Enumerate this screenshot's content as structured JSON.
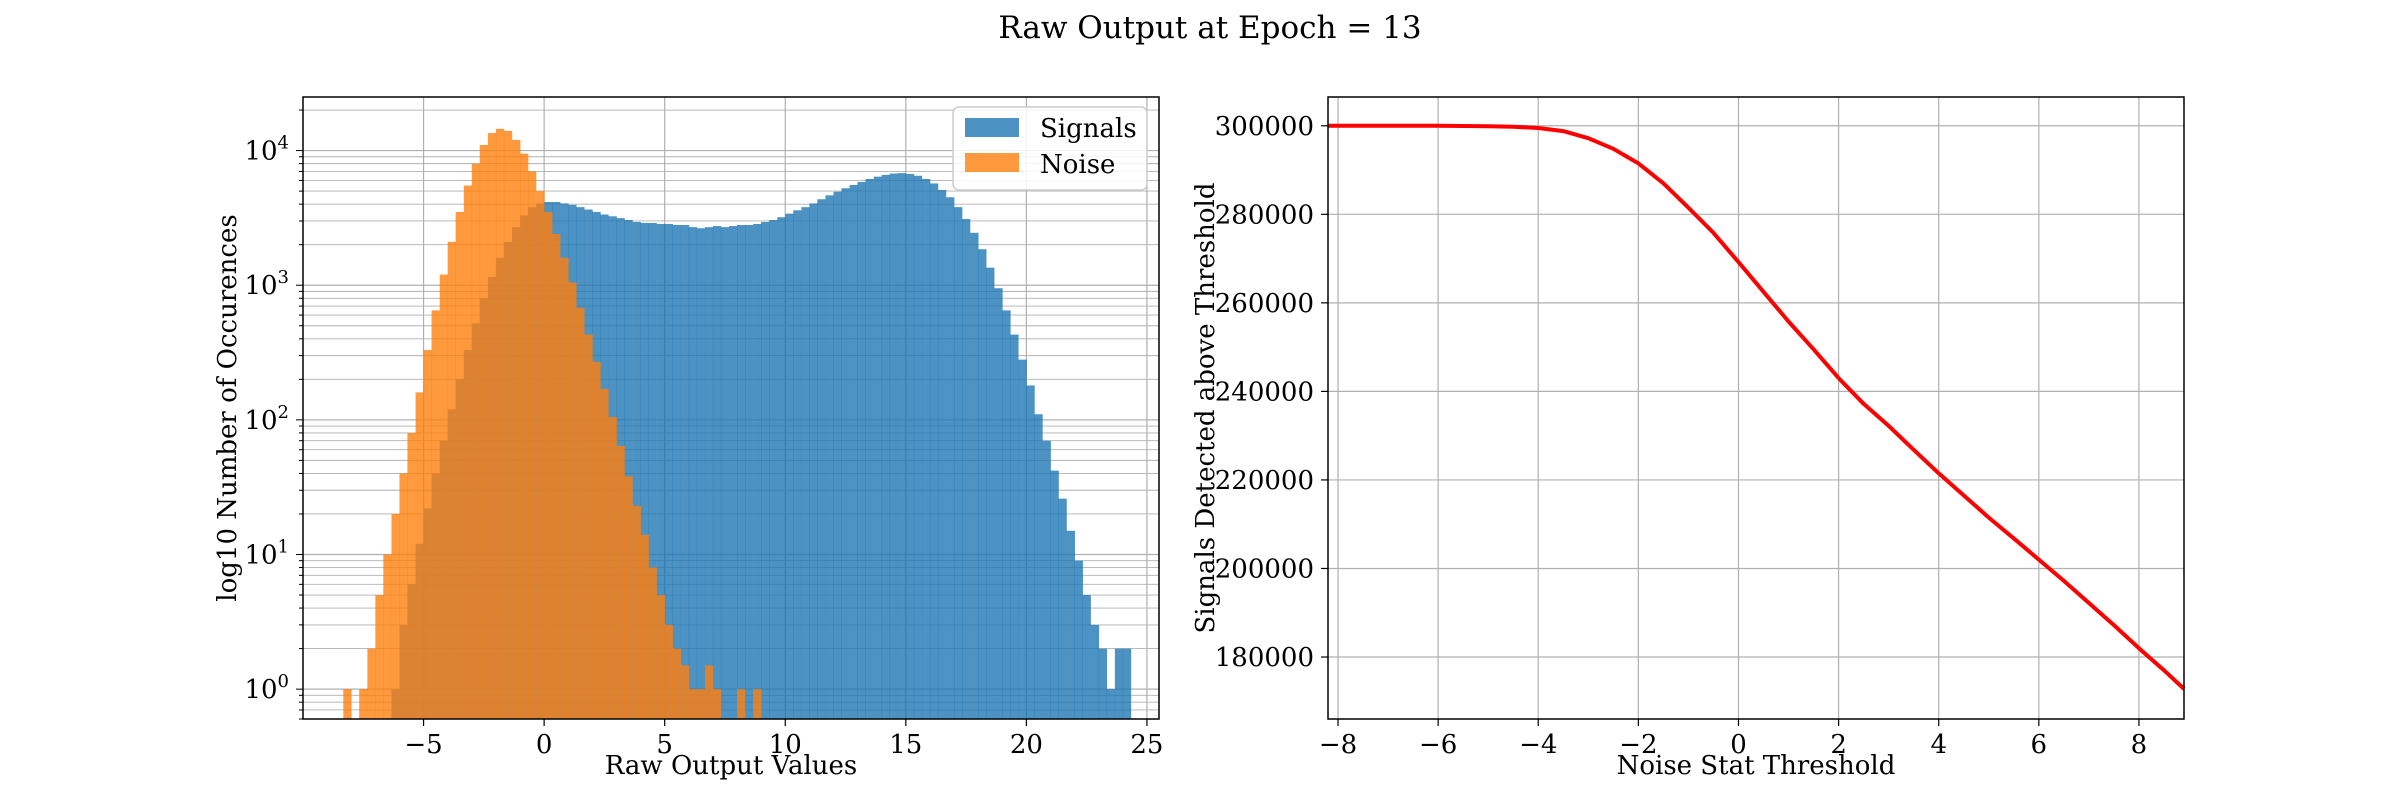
{
  "figure": {
    "title": "Raw Output at Epoch = 13"
  },
  "chart_data": [
    {
      "type": "histogram",
      "xlabel": "Raw Output Values",
      "ylabel": "log10 Number of Occurences",
      "xlim": [
        -10,
        25.5
      ],
      "ylim": [
        0.6,
        25000
      ],
      "y_scale": "log",
      "grid": true,
      "legend_position": "top-right",
      "x_ticks": [
        -5,
        0,
        5,
        10,
        15,
        20,
        25
      ],
      "x_tick_labels": [
        "−5",
        "0",
        "5",
        "10",
        "15",
        "20",
        "25"
      ],
      "y_ticks": [
        1,
        10,
        100,
        1000,
        10000
      ],
      "bin_width": 0.333,
      "series": [
        {
          "name": "Signals",
          "color": "#1f77b4",
          "bins": [
            [
              -6.33,
              1
            ],
            [
              -6.0,
              3
            ],
            [
              -5.67,
              6
            ],
            [
              -5.33,
              12
            ],
            [
              -5.0,
              22
            ],
            [
              -4.67,
              40
            ],
            [
              -4.33,
              70
            ],
            [
              -4.0,
              120
            ],
            [
              -3.67,
              200
            ],
            [
              -3.33,
              330
            ],
            [
              -3.0,
              520
            ],
            [
              -2.67,
              800
            ],
            [
              -2.33,
              1150
            ],
            [
              -2.0,
              1600
            ],
            [
              -1.67,
              2100
            ],
            [
              -1.33,
              2700
            ],
            [
              -1.0,
              3300
            ],
            [
              -0.67,
              3800
            ],
            [
              -0.33,
              4050
            ],
            [
              0.0,
              4150
            ],
            [
              0.33,
              4150
            ],
            [
              0.67,
              4050
            ],
            [
              1.0,
              3950
            ],
            [
              1.33,
              3800
            ],
            [
              1.67,
              3650
            ],
            [
              2.0,
              3500
            ],
            [
              2.33,
              3350
            ],
            [
              2.67,
              3250
            ],
            [
              3.0,
              3150
            ],
            [
              3.33,
              3050
            ],
            [
              3.67,
              2950
            ],
            [
              4.0,
              2900
            ],
            [
              4.33,
              2900
            ],
            [
              4.67,
              2850
            ],
            [
              5.0,
              2850
            ],
            [
              5.33,
              2800
            ],
            [
              5.67,
              2800
            ],
            [
              6.0,
              2700
            ],
            [
              6.33,
              2650
            ],
            [
              6.67,
              2700
            ],
            [
              7.0,
              2750
            ],
            [
              7.33,
              2700
            ],
            [
              7.67,
              2750
            ],
            [
              8.0,
              2800
            ],
            [
              8.33,
              2800
            ],
            [
              8.67,
              2850
            ],
            [
              9.0,
              2950
            ],
            [
              9.33,
              3050
            ],
            [
              9.67,
              3200
            ],
            [
              10.0,
              3400
            ],
            [
              10.33,
              3600
            ],
            [
              10.67,
              3800
            ],
            [
              11.0,
              4050
            ],
            [
              11.33,
              4350
            ],
            [
              11.67,
              4650
            ],
            [
              12.0,
              4950
            ],
            [
              12.33,
              5250
            ],
            [
              12.67,
              5550
            ],
            [
              13.0,
              5850
            ],
            [
              13.33,
              6150
            ],
            [
              13.67,
              6400
            ],
            [
              14.0,
              6600
            ],
            [
              14.33,
              6750
            ],
            [
              14.67,
              6800
            ],
            [
              15.0,
              6700
            ],
            [
              15.33,
              6500
            ],
            [
              15.67,
              6150
            ],
            [
              16.0,
              5700
            ],
            [
              16.33,
              5100
            ],
            [
              16.67,
              4500
            ],
            [
              17.0,
              3800
            ],
            [
              17.33,
              3100
            ],
            [
              17.67,
              2450
            ],
            [
              18.0,
              1850
            ],
            [
              18.33,
              1350
            ],
            [
              18.67,
              950
            ],
            [
              19.0,
              650
            ],
            [
              19.33,
              430
            ],
            [
              19.67,
              280
            ],
            [
              20.0,
              180
            ],
            [
              20.33,
              110
            ],
            [
              20.67,
              70
            ],
            [
              21.0,
              42
            ],
            [
              21.33,
              26
            ],
            [
              21.67,
              15
            ],
            [
              22.0,
              9
            ],
            [
              22.33,
              5
            ],
            [
              22.67,
              3
            ],
            [
              23.0,
              2
            ],
            [
              23.33,
              1
            ],
            [
              23.67,
              2
            ],
            [
              24.0,
              2
            ]
          ]
        },
        {
          "name": "Noise",
          "color": "#ff7f0e",
          "bins": [
            [
              -8.33,
              1
            ],
            [
              -7.67,
              1
            ],
            [
              -7.33,
              2
            ],
            [
              -7.0,
              5
            ],
            [
              -6.67,
              10
            ],
            [
              -6.33,
              20
            ],
            [
              -6.0,
              40
            ],
            [
              -5.67,
              80
            ],
            [
              -5.33,
              160
            ],
            [
              -5.0,
              330
            ],
            [
              -4.67,
              650
            ],
            [
              -4.33,
              1200
            ],
            [
              -4.0,
              2100
            ],
            [
              -3.67,
              3500
            ],
            [
              -3.33,
              5500
            ],
            [
              -3.0,
              8000
            ],
            [
              -2.67,
              11000
            ],
            [
              -2.33,
              13500
            ],
            [
              -2.0,
              14500
            ],
            [
              -1.67,
              14000
            ],
            [
              -1.33,
              12000
            ],
            [
              -1.0,
              9500
            ],
            [
              -0.67,
              7000
            ],
            [
              -0.33,
              5000
            ],
            [
              0.0,
              3500
            ],
            [
              0.33,
              2400
            ],
            [
              0.67,
              1600
            ],
            [
              1.0,
              1050
            ],
            [
              1.33,
              680
            ],
            [
              1.67,
              430
            ],
            [
              2.0,
              270
            ],
            [
              2.33,
              170
            ],
            [
              2.67,
              105
            ],
            [
              3.0,
              64
            ],
            [
              3.33,
              38
            ],
            [
              3.67,
              23
            ],
            [
              4.0,
              14
            ],
            [
              4.33,
              8
            ],
            [
              4.67,
              5
            ],
            [
              5.0,
              3
            ],
            [
              5.33,
              2
            ],
            [
              5.67,
              1.5
            ],
            [
              6.0,
              1
            ],
            [
              6.33,
              1
            ],
            [
              6.67,
              1.5
            ],
            [
              7.0,
              1
            ],
            [
              8.0,
              1
            ],
            [
              8.67,
              1
            ]
          ]
        }
      ]
    },
    {
      "type": "line",
      "xlabel": "Noise Stat Threshold",
      "ylabel": "Signals Detected above Threshold",
      "xlim": [
        -8.2,
        8.9
      ],
      "ylim": [
        166000,
        306500
      ],
      "grid": true,
      "x_ticks": [
        -8,
        -6,
        -4,
        -2,
        0,
        2,
        4,
        6,
        8
      ],
      "x_tick_labels": [
        "−8",
        "−6",
        "−4",
        "−2",
        "0",
        "2",
        "4",
        "6",
        "8"
      ],
      "y_ticks": [
        180000,
        200000,
        220000,
        240000,
        260000,
        280000,
        300000
      ],
      "series": [
        {
          "color": "#ff0000",
          "x": [
            -8.2,
            -7,
            -6,
            -5,
            -4.5,
            -4,
            -3.5,
            -3,
            -2.5,
            -2,
            -1.5,
            -1,
            -0.5,
            0,
            0.5,
            1,
            1.5,
            2,
            2.5,
            3,
            3.5,
            4,
            4.5,
            5,
            5.5,
            6,
            6.5,
            7,
            7.5,
            8,
            8.5,
            8.9
          ],
          "y": [
            300000,
            300000,
            300000,
            299900,
            299800,
            299500,
            298800,
            297200,
            294800,
            291500,
            287000,
            281500,
            275800,
            269200,
            262500,
            255800,
            249500,
            243000,
            237200,
            232200,
            226800,
            221500,
            216500,
            211500,
            206800,
            202000,
            197200,
            192200,
            187200,
            182000,
            177000,
            172800
          ]
        }
      ]
    }
  ]
}
